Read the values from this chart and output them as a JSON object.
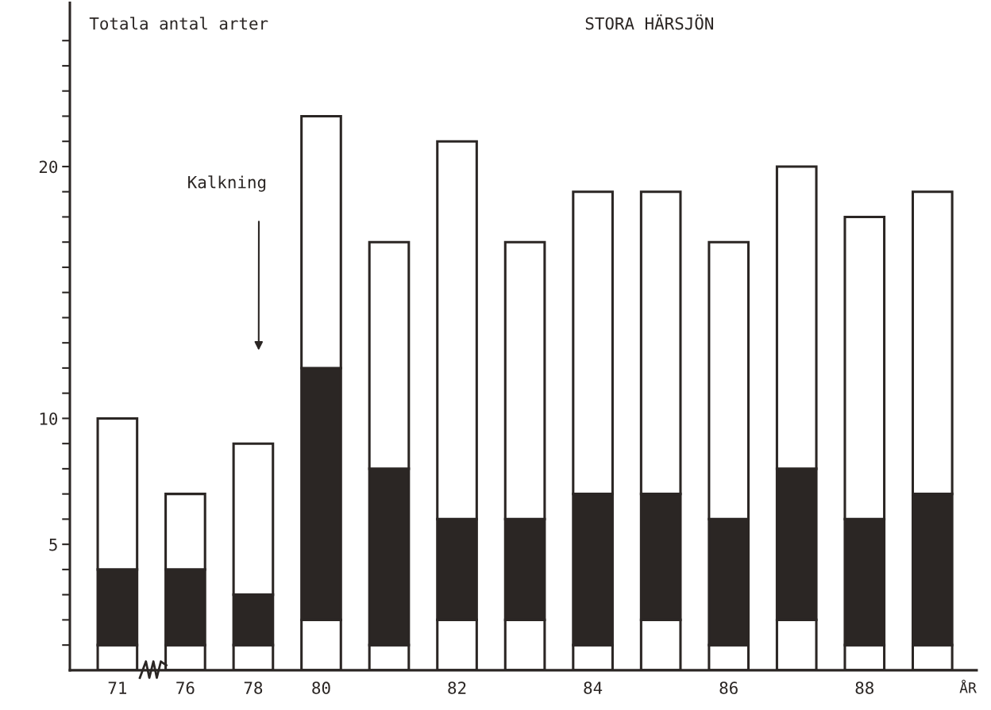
{
  "chart_data": {
    "type": "bar",
    "stacked": true,
    "title": "Totala antal arter",
    "subtitle": "STORA HÄRSJÖN",
    "xlabel": "ÅR",
    "annotations": [
      "Kalkning"
    ],
    "categories": [
      "71",
      "76",
      "78",
      "80",
      null,
      "82",
      null,
      "84",
      null,
      "86",
      null,
      "88",
      null
    ],
    "series": [
      {
        "color": "#ffffff",
        "values": [
          1,
          1,
          1,
          2,
          1,
          2,
          2,
          1,
          2,
          1,
          2,
          1,
          1
        ]
      },
      {
        "color": "#2b2624",
        "values": [
          3,
          3,
          2,
          10,
          7,
          4,
          4,
          6,
          5,
          5,
          6,
          5,
          6
        ]
      },
      {
        "color": "#ffffff",
        "values": [
          6,
          3,
          6,
          10,
          9,
          15,
          11,
          12,
          12,
          11,
          12,
          12,
          12
        ]
      }
    ],
    "ylim": [
      0,
      26.5
    ],
    "yticks": [
      {
        "value": 1,
        "label": null
      },
      {
        "value": 2,
        "label": null
      },
      {
        "value": 3,
        "label": null
      },
      {
        "value": 4,
        "label": null
      },
      5,
      {
        "value": 6,
        "label": null
      },
      {
        "value": 7,
        "label": null
      },
      {
        "value": 8,
        "label": null
      },
      {
        "value": 9,
        "label": null
      },
      10,
      {
        "value": 11,
        "label": null
      },
      {
        "value": 12,
        "label": null
      },
      {
        "value": 13,
        "label": null
      },
      {
        "value": 14,
        "label": null
      },
      {
        "value": 15,
        "label": null
      },
      {
        "value": 16,
        "label": null
      },
      {
        "value": 17,
        "label": null
      },
      {
        "value": 18,
        "label": null
      },
      {
        "value": 19,
        "label": null
      },
      20,
      {
        "value": 21,
        "label": null
      },
      {
        "value": 22,
        "label": null
      },
      {
        "value": 23,
        "label": null
      },
      {
        "value": 24,
        "label": null
      },
      {
        "value": 25,
        "label": null
      }
    ],
    "grid": false,
    "legend": false
  }
}
